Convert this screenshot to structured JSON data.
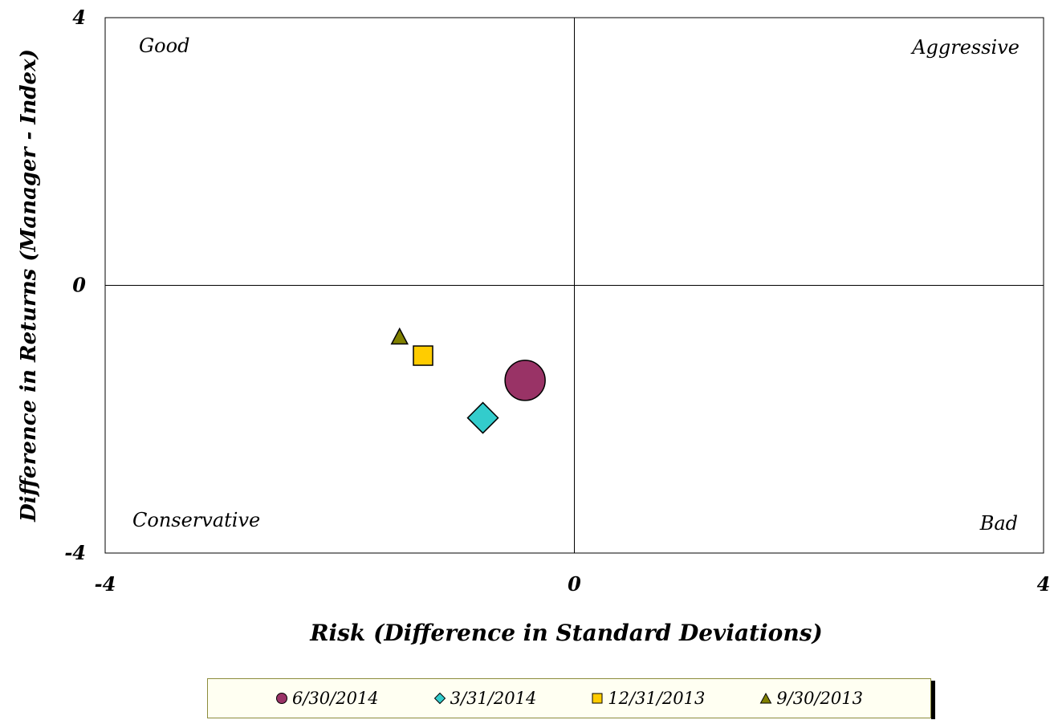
{
  "chart_data": {
    "type": "scatter",
    "title": "",
    "xlabel": "Risk (Difference in Standard Deviations)",
    "ylabel": "Difference in Returns (Manager - Index)",
    "xlim": [
      -4,
      4
    ],
    "ylim": [
      -4,
      4
    ],
    "x_ticks": [
      "-4",
      "0",
      "4"
    ],
    "y_ticks": [
      "4",
      "0",
      "-4"
    ],
    "grid": false,
    "quadrant_labels": {
      "top_left": "Good",
      "top_right": "Aggressive",
      "bottom_left": "Conservative",
      "bottom_right": "Bad"
    },
    "legend_position": "bottom",
    "series": [
      {
        "name": "6/30/2014",
        "marker": "circle",
        "color": "#993366",
        "x": -0.42,
        "y": -1.42
      },
      {
        "name": "3/31/2014",
        "marker": "diamond",
        "color": "#33CCCC",
        "x": -0.78,
        "y": -1.98
      },
      {
        "name": "12/31/2013",
        "marker": "square",
        "color": "#FFCC00",
        "x": -1.29,
        "y": -1.05
      },
      {
        "name": "9/30/2013",
        "marker": "triangle",
        "color": "#808000",
        "x": -1.49,
        "y": -0.78
      }
    ]
  }
}
